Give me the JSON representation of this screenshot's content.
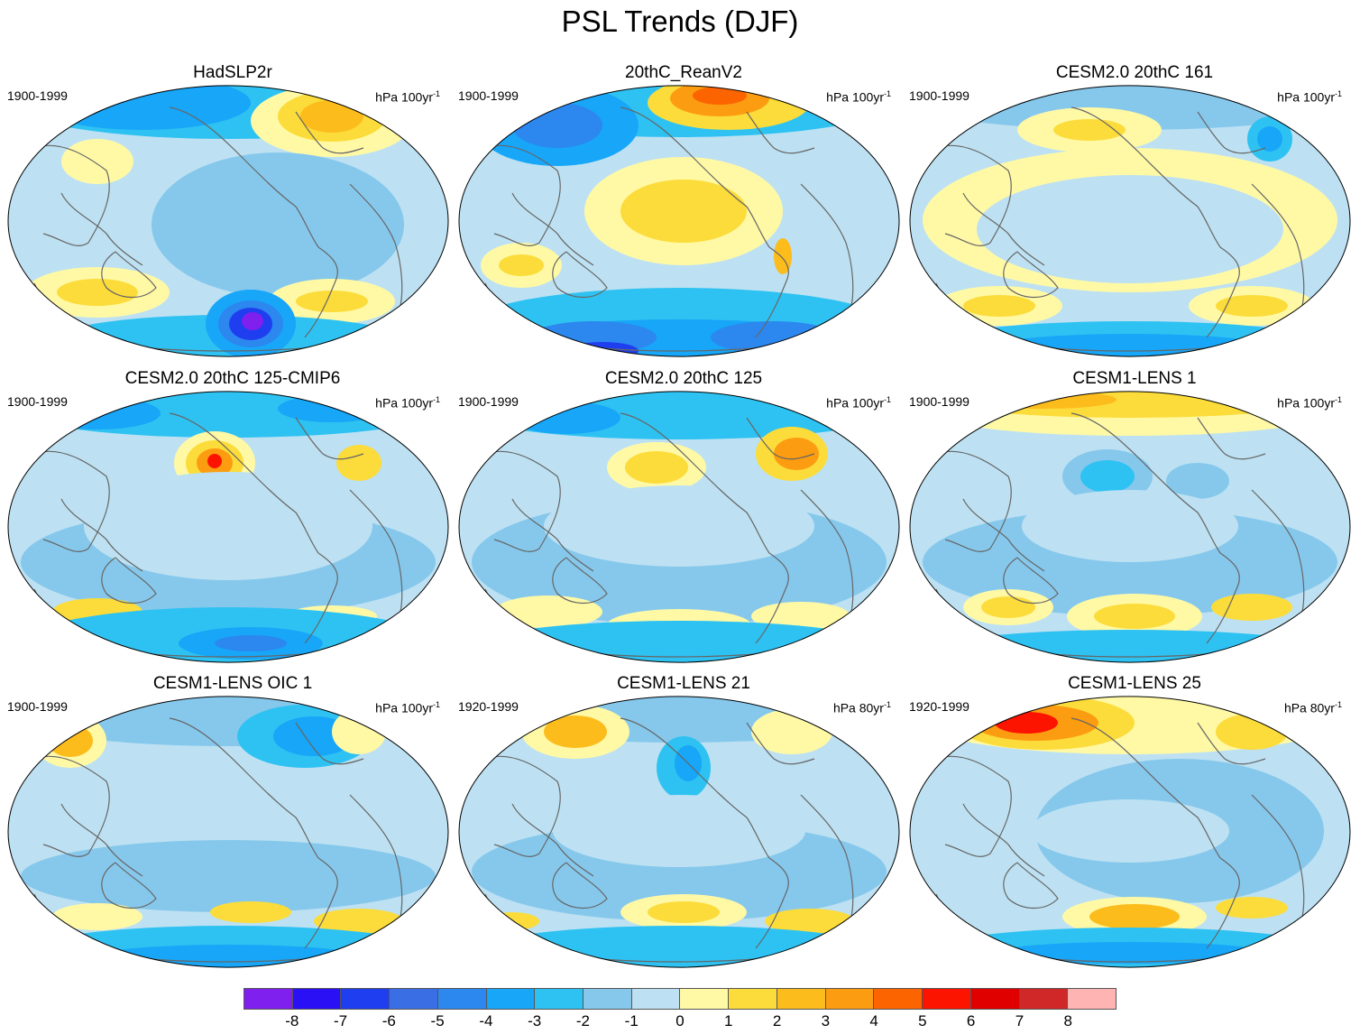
{
  "title": "PSL Trends (DJF)",
  "panels": [
    {
      "title": "HadSLP2r",
      "period": "1900-1999",
      "units": "hPa 100yr",
      "units_exp": "-1",
      "pattern": "hadslp"
    },
    {
      "title": "20thC_ReanV2",
      "period": "1900-1999",
      "units": "hPa 100yr",
      "units_exp": "-1",
      "pattern": "rean"
    },
    {
      "title": "CESM2.0 20thC 161",
      "period": "1900-1999",
      "units": "hPa 100yr",
      "units_exp": "-1",
      "pattern": "c161"
    },
    {
      "title": "CESM2.0 20thC 125-CMIP6",
      "period": "1900-1999",
      "units": "hPa 100yr",
      "units_exp": "-1",
      "pattern": "c125cmip6"
    },
    {
      "title": "CESM2.0 20thC 125",
      "period": "1900-1999",
      "units": "hPa 100yr",
      "units_exp": "-1",
      "pattern": "c125"
    },
    {
      "title": "CESM1-LENS 1",
      "period": "1900-1999",
      "units": "hPa 100yr",
      "units_exp": "-1",
      "pattern": "lens1"
    },
    {
      "title": "CESM1-LENS OIC 1",
      "period": "1900-1999",
      "units": "hPa 100yr",
      "units_exp": "-1",
      "pattern": "oic1"
    },
    {
      "title": "CESM1-LENS 21",
      "period": "1920-1999",
      "units": "hPa 80yr",
      "units_exp": "-1",
      "pattern": "lens21"
    },
    {
      "title": "CESM1-LENS 25",
      "period": "1920-1999",
      "units": "hPa 80yr",
      "units_exp": "-1",
      "pattern": "lens25"
    }
  ],
  "colorbar": {
    "colors": [
      "#7f20ee",
      "#2a10f5",
      "#1f3ef0",
      "#3a6ee4",
      "#2c87ef",
      "#17a6f8",
      "#2ec2f2",
      "#86c8ec",
      "#bde1f2",
      "#fff9a6",
      "#fcdc3a",
      "#fcbc1c",
      "#fc9c10",
      "#fc6400",
      "#fc1400",
      "#e00000",
      "#d02828",
      "#ffb4b4"
    ],
    "labels": [
      "-8",
      "-7",
      "-6",
      "-5",
      "-4",
      "-3",
      "-2",
      "-1",
      "0",
      "1",
      "2",
      "3",
      "4",
      "5",
      "6",
      "7",
      "8"
    ]
  }
}
